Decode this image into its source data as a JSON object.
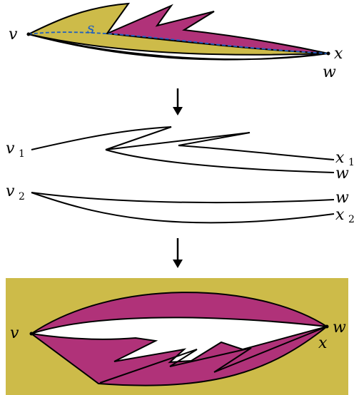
{
  "colors": {
    "olive": "#cdbb49",
    "magenta": "#b03279",
    "outline": "#000000",
    "dashed_path": "#1f5fbf",
    "white": "#ffffff"
  },
  "labels": {
    "top": {
      "v": "v",
      "x": "x",
      "w": "w",
      "s": "s"
    },
    "middle": {
      "v1": "v",
      "v1_sub": "1",
      "x1": "x",
      "x1_sub": "1",
      "w1": "w",
      "v2": "v",
      "v2_sub": "2",
      "w2": "w",
      "x2": "x",
      "x2_sub": "2"
    },
    "bottom": {
      "v": "v",
      "w": "w",
      "x": "x"
    }
  },
  "icons": {
    "arrow_down_1": "down-arrow-icon",
    "arrow_down_2": "down-arrow-icon"
  }
}
